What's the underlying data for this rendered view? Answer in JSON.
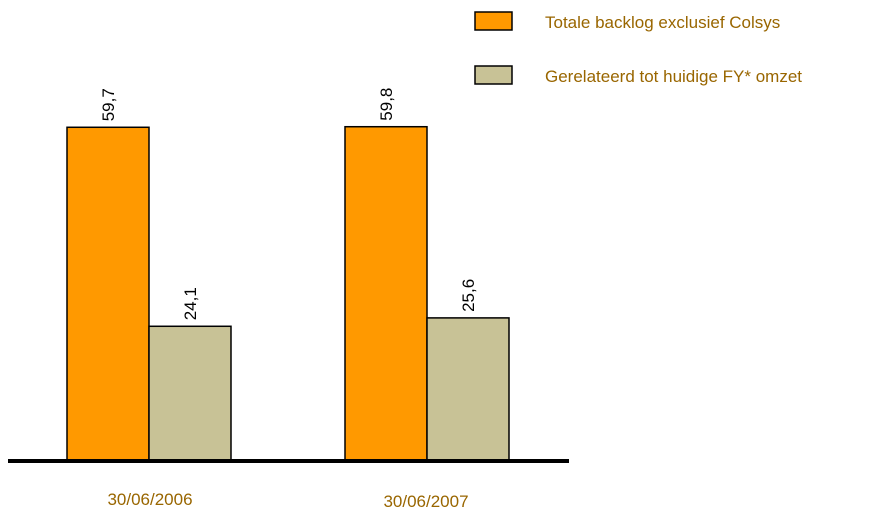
{
  "chart_data": {
    "type": "bar",
    "categories": [
      "30/06/2006",
      "30/06/2007"
    ],
    "series": [
      {
        "name": "Totale backlog exclusief Colsys",
        "values": [
          59.7,
          59.8
        ],
        "labels": [
          "59,7",
          "59,8"
        ],
        "color": "#FF9900"
      },
      {
        "name": "Gerelateerd tot huidige FY* omzet",
        "values": [
          24.1,
          25.6
        ],
        "labels": [
          "24,1",
          "25,6"
        ],
        "color": "#C8C296"
      }
    ],
    "legend_position": "top-right",
    "ylim": [
      0,
      100
    ],
    "grid": false
  },
  "colors": {
    "text": "#996600",
    "axis": "#000000",
    "bar_outline": "#000000"
  }
}
